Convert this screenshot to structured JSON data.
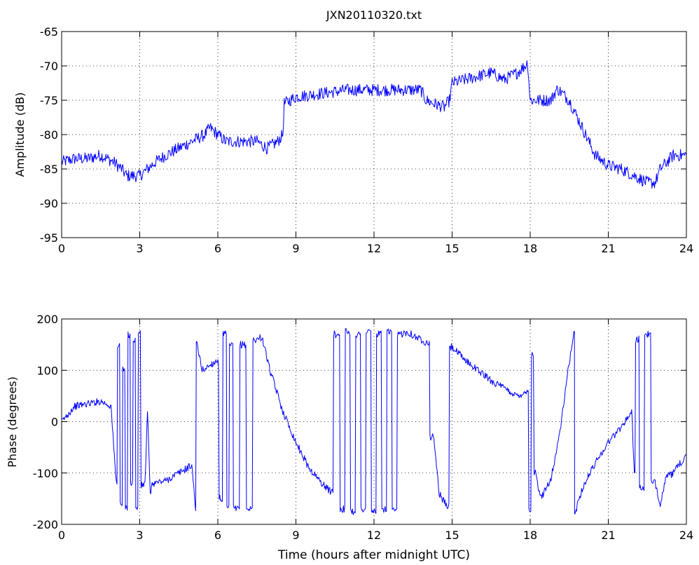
{
  "chart_data": [
    {
      "type": "line",
      "title": "JXN20110320.txt",
      "xlabel": "",
      "ylabel": "Amplitude (dB)",
      "xlim": [
        0,
        24
      ],
      "ylim": [
        -95,
        -65
      ],
      "xticks": [
        0,
        3,
        6,
        9,
        12,
        15,
        18,
        21,
        24
      ],
      "yticks": [
        -95,
        -90,
        -85,
        -80,
        -75,
        -70,
        -65
      ],
      "grid": true,
      "color": "#0000ff",
      "series": [
        {
          "x": [
            0,
            0.5,
            1.0,
            1.5,
            2.0,
            2.3,
            2.5,
            2.8,
            3.0,
            3.3,
            3.6,
            4.0,
            4.5,
            5.0,
            5.5,
            5.7,
            6.0,
            6.3,
            6.6,
            7.0,
            7.5,
            7.9,
            8.3,
            8.5,
            8.55,
            9.0,
            10.0,
            11.0,
            12.0,
            13.0,
            13.8,
            14.0,
            14.3,
            14.7,
            14.9,
            15.0,
            15.5,
            16.0,
            16.5,
            17.0,
            17.5,
            17.8,
            17.9,
            18.0,
            18.3,
            18.8,
            19.0,
            19.1,
            19.5,
            20.0,
            20.5,
            21.0,
            21.5,
            22.0,
            22.5,
            22.8,
            23.0,
            23.5,
            24.0
          ],
          "y": [
            -84,
            -83.5,
            -83.5,
            -83,
            -84,
            -85,
            -86,
            -86,
            -86,
            -85,
            -84,
            -83,
            -82,
            -81,
            -80,
            -79,
            -80,
            -81,
            -81,
            -81,
            -81,
            -82,
            -81,
            -80,
            -75.5,
            -74.5,
            -74,
            -73.5,
            -73.5,
            -73.5,
            -73.5,
            -75,
            -75.5,
            -76,
            -75,
            -72.5,
            -72,
            -71.5,
            -71,
            -72,
            -71,
            -70,
            -69.5,
            -75,
            -75,
            -75,
            -73.5,
            -73.5,
            -75,
            -79,
            -83,
            -84.5,
            -85,
            -86,
            -87,
            -87,
            -85,
            -83,
            -83
          ]
        }
      ]
    },
    {
      "type": "line",
      "title": "",
      "xlabel": "Time (hours after midnight UTC)",
      "ylabel": "Phase (degrees)",
      "xlim": [
        0,
        24
      ],
      "ylim": [
        -200,
        200
      ],
      "xticks": [
        0,
        3,
        6,
        9,
        12,
        15,
        18,
        21,
        24
      ],
      "yticks": [
        -200,
        -100,
        0,
        100,
        200
      ],
      "grid": true,
      "color": "#0000ff",
      "series": [
        {
          "x": [
            0,
            0.5,
            1.0,
            1.5,
            1.9,
            2.0,
            2.1,
            2.2,
            2.3,
            2.4,
            2.5,
            2.6,
            2.7,
            2.8,
            2.9,
            3.0,
            3.1,
            3.2,
            3.3,
            3.4,
            3.5,
            4.0,
            4.5,
            5.0,
            5.15,
            5.2,
            5.4,
            5.7,
            6.0,
            6.1,
            6.3,
            6.4,
            6.5,
            6.7,
            7.0,
            7.2,
            7.5,
            7.7,
            8.0,
            8.5,
            9.0,
            9.5,
            10.0,
            10.3,
            10.6,
            10.8,
            11.0,
            11.2,
            11.4,
            11.6,
            11.8,
            12.0,
            12.2,
            12.4,
            12.6,
            12.8,
            13.0,
            13.3,
            13.6,
            14.0,
            14.3,
            14.5,
            14.8,
            15.0,
            15.5,
            16.0,
            16.5,
            17.0,
            17.5,
            17.9,
            18.0,
            18.1,
            18.2,
            18.4,
            18.6,
            18.8,
            19.0,
            19.2,
            19.4,
            19.6,
            19.7,
            19.71,
            20.0,
            20.5,
            21.0,
            21.5,
            21.9,
            22.0,
            22.1,
            22.3,
            22.5,
            22.8,
            23.0,
            23.2,
            23.5,
            24.0
          ],
          "y": [
            0,
            30,
            35,
            40,
            30,
            -50,
            -120,
            150,
            -160,
            100,
            -170,
            170,
            -120,
            160,
            -170,
            175,
            -125,
            -120,
            20,
            -140,
            -120,
            -115,
            -100,
            -85,
            -170,
            150,
            100,
            110,
            120,
            -150,
            170,
            -170,
            150,
            -170,
            150,
            -170,
            160,
            165,
            100,
            20,
            -40,
            -90,
            -120,
            -135,
            170,
            -170,
            175,
            -175,
            170,
            -170,
            175,
            -175,
            170,
            -170,
            175,
            -175,
            170,
            175,
            165,
            155,
            -30,
            -140,
            -165,
            145,
            120,
            100,
            80,
            65,
            50,
            60,
            -170,
            130,
            -100,
            -150,
            -130,
            -110,
            -60,
            0,
            80,
            150,
            175,
            -180,
            -130,
            -80,
            -40,
            -10,
            20,
            -100,
            160,
            -130,
            170,
            -120,
            -160,
            -110,
            -100,
            -65
          ]
        }
      ]
    }
  ]
}
